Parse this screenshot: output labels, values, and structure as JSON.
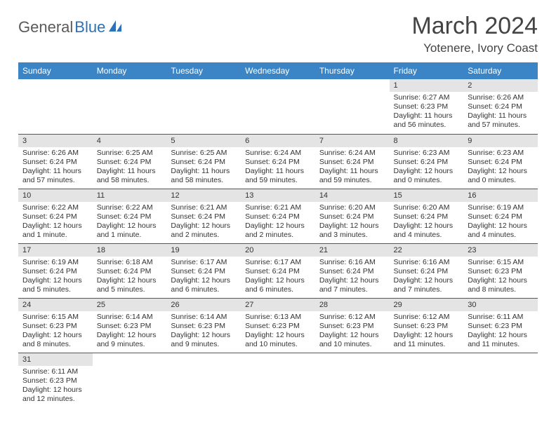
{
  "logo": {
    "part1": "General",
    "part2": "Blue"
  },
  "title": "March 2024",
  "location": "Yotenere, Ivory Coast",
  "colors": {
    "header_bg": "#3b85c6",
    "header_text": "#ffffff",
    "daynum_bg": "#e4e4e4",
    "row_border": "#2d5f95",
    "logo_gray": "#5a5a5a",
    "logo_blue": "#2d71b8"
  },
  "weekdays": [
    "Sunday",
    "Monday",
    "Tuesday",
    "Wednesday",
    "Thursday",
    "Friday",
    "Saturday"
  ],
  "weeks": [
    [
      null,
      null,
      null,
      null,
      null,
      {
        "n": "1",
        "sr": "Sunrise: 6:27 AM",
        "ss": "Sunset: 6:23 PM",
        "dl": "Daylight: 11 hours and 56 minutes."
      },
      {
        "n": "2",
        "sr": "Sunrise: 6:26 AM",
        "ss": "Sunset: 6:24 PM",
        "dl": "Daylight: 11 hours and 57 minutes."
      }
    ],
    [
      {
        "n": "3",
        "sr": "Sunrise: 6:26 AM",
        "ss": "Sunset: 6:24 PM",
        "dl": "Daylight: 11 hours and 57 minutes."
      },
      {
        "n": "4",
        "sr": "Sunrise: 6:25 AM",
        "ss": "Sunset: 6:24 PM",
        "dl": "Daylight: 11 hours and 58 minutes."
      },
      {
        "n": "5",
        "sr": "Sunrise: 6:25 AM",
        "ss": "Sunset: 6:24 PM",
        "dl": "Daylight: 11 hours and 58 minutes."
      },
      {
        "n": "6",
        "sr": "Sunrise: 6:24 AM",
        "ss": "Sunset: 6:24 PM",
        "dl": "Daylight: 11 hours and 59 minutes."
      },
      {
        "n": "7",
        "sr": "Sunrise: 6:24 AM",
        "ss": "Sunset: 6:24 PM",
        "dl": "Daylight: 11 hours and 59 minutes."
      },
      {
        "n": "8",
        "sr": "Sunrise: 6:23 AM",
        "ss": "Sunset: 6:24 PM",
        "dl": "Daylight: 12 hours and 0 minutes."
      },
      {
        "n": "9",
        "sr": "Sunrise: 6:23 AM",
        "ss": "Sunset: 6:24 PM",
        "dl": "Daylight: 12 hours and 0 minutes."
      }
    ],
    [
      {
        "n": "10",
        "sr": "Sunrise: 6:22 AM",
        "ss": "Sunset: 6:24 PM",
        "dl": "Daylight: 12 hours and 1 minute."
      },
      {
        "n": "11",
        "sr": "Sunrise: 6:22 AM",
        "ss": "Sunset: 6:24 PM",
        "dl": "Daylight: 12 hours and 1 minute."
      },
      {
        "n": "12",
        "sr": "Sunrise: 6:21 AM",
        "ss": "Sunset: 6:24 PM",
        "dl": "Daylight: 12 hours and 2 minutes."
      },
      {
        "n": "13",
        "sr": "Sunrise: 6:21 AM",
        "ss": "Sunset: 6:24 PM",
        "dl": "Daylight: 12 hours and 2 minutes."
      },
      {
        "n": "14",
        "sr": "Sunrise: 6:20 AM",
        "ss": "Sunset: 6:24 PM",
        "dl": "Daylight: 12 hours and 3 minutes."
      },
      {
        "n": "15",
        "sr": "Sunrise: 6:20 AM",
        "ss": "Sunset: 6:24 PM",
        "dl": "Daylight: 12 hours and 4 minutes."
      },
      {
        "n": "16",
        "sr": "Sunrise: 6:19 AM",
        "ss": "Sunset: 6:24 PM",
        "dl": "Daylight: 12 hours and 4 minutes."
      }
    ],
    [
      {
        "n": "17",
        "sr": "Sunrise: 6:19 AM",
        "ss": "Sunset: 6:24 PM",
        "dl": "Daylight: 12 hours and 5 minutes."
      },
      {
        "n": "18",
        "sr": "Sunrise: 6:18 AM",
        "ss": "Sunset: 6:24 PM",
        "dl": "Daylight: 12 hours and 5 minutes."
      },
      {
        "n": "19",
        "sr": "Sunrise: 6:17 AM",
        "ss": "Sunset: 6:24 PM",
        "dl": "Daylight: 12 hours and 6 minutes."
      },
      {
        "n": "20",
        "sr": "Sunrise: 6:17 AM",
        "ss": "Sunset: 6:24 PM",
        "dl": "Daylight: 12 hours and 6 minutes."
      },
      {
        "n": "21",
        "sr": "Sunrise: 6:16 AM",
        "ss": "Sunset: 6:24 PM",
        "dl": "Daylight: 12 hours and 7 minutes."
      },
      {
        "n": "22",
        "sr": "Sunrise: 6:16 AM",
        "ss": "Sunset: 6:24 PM",
        "dl": "Daylight: 12 hours and 7 minutes."
      },
      {
        "n": "23",
        "sr": "Sunrise: 6:15 AM",
        "ss": "Sunset: 6:23 PM",
        "dl": "Daylight: 12 hours and 8 minutes."
      }
    ],
    [
      {
        "n": "24",
        "sr": "Sunrise: 6:15 AM",
        "ss": "Sunset: 6:23 PM",
        "dl": "Daylight: 12 hours and 8 minutes."
      },
      {
        "n": "25",
        "sr": "Sunrise: 6:14 AM",
        "ss": "Sunset: 6:23 PM",
        "dl": "Daylight: 12 hours and 9 minutes."
      },
      {
        "n": "26",
        "sr": "Sunrise: 6:14 AM",
        "ss": "Sunset: 6:23 PM",
        "dl": "Daylight: 12 hours and 9 minutes."
      },
      {
        "n": "27",
        "sr": "Sunrise: 6:13 AM",
        "ss": "Sunset: 6:23 PM",
        "dl": "Daylight: 12 hours and 10 minutes."
      },
      {
        "n": "28",
        "sr": "Sunrise: 6:12 AM",
        "ss": "Sunset: 6:23 PM",
        "dl": "Daylight: 12 hours and 10 minutes."
      },
      {
        "n": "29",
        "sr": "Sunrise: 6:12 AM",
        "ss": "Sunset: 6:23 PM",
        "dl": "Daylight: 12 hours and 11 minutes."
      },
      {
        "n": "30",
        "sr": "Sunrise: 6:11 AM",
        "ss": "Sunset: 6:23 PM",
        "dl": "Daylight: 12 hours and 11 minutes."
      }
    ],
    [
      {
        "n": "31",
        "sr": "Sunrise: 6:11 AM",
        "ss": "Sunset: 6:23 PM",
        "dl": "Daylight: 12 hours and 12 minutes."
      },
      null,
      null,
      null,
      null,
      null,
      null
    ]
  ]
}
